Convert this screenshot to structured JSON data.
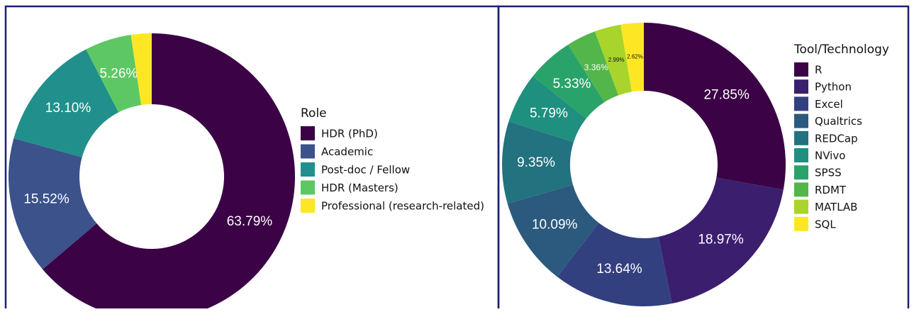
{
  "chart_data": [
    {
      "type": "donut",
      "legend_title": "Role",
      "categories": [
        "HDR (PhD)",
        "Academic",
        "Post-doc / Fellow",
        "HDR (Masters)",
        "Professional (research-related)"
      ],
      "values": [
        63.79,
        15.52,
        13.1,
        5.26,
        2.33
      ],
      "value_labels": [
        "63.79%",
        "15.52%",
        "13.10%",
        "5.26%",
        null
      ],
      "colors": [
        "#3b0246",
        "#3b528b",
        "#21908c",
        "#5dc863",
        "#fde725"
      ]
    },
    {
      "type": "donut",
      "legend_title": "Tool/Technology",
      "categories": [
        "R",
        "Python",
        "Excel",
        "Qualtrics",
        "REDCap",
        "NVivo",
        "SPSS",
        "RDMT",
        "MATLAB",
        "SQL"
      ],
      "values": [
        27.85,
        18.97,
        13.64,
        10.09,
        9.35,
        5.79,
        5.33,
        3.36,
        2.99,
        2.62
      ],
      "value_labels": [
        "27.85%",
        "18.97%",
        "13.64%",
        "10.09%",
        "9.35%",
        "5.79%",
        "5.33%",
        "3.36%",
        "2.99%",
        "2.62%"
      ],
      "colors": [
        "#3b0246",
        "#3b1f6e",
        "#33407f",
        "#2b5a7e",
        "#22727f",
        "#1f8f7f",
        "#2aa36a",
        "#52b64a",
        "#a8d42c",
        "#fde725"
      ]
    }
  ]
}
